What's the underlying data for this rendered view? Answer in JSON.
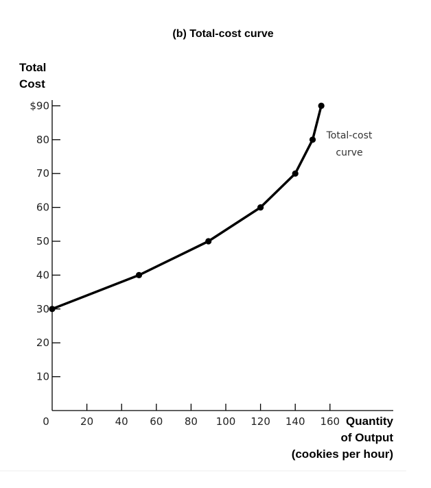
{
  "chart_data": {
    "type": "line",
    "title": "(b) Total-cost curve",
    "ylabel": [
      "Total",
      "Cost"
    ],
    "xlabel": [
      "Quantity",
      "of Output",
      "(cookies per hour)"
    ],
    "annotation": [
      "Total-cost",
      "curve"
    ],
    "x_ticks": [
      0,
      20,
      40,
      60,
      80,
      100,
      120,
      140,
      160
    ],
    "x_tick_labels": [
      "0",
      "20",
      "40",
      "60",
      "80",
      "100",
      "120",
      "140",
      "160"
    ],
    "y_ticks": [
      10,
      20,
      30,
      40,
      50,
      60,
      70,
      80,
      90
    ],
    "y_tick_labels": [
      "10",
      "20",
      "30",
      "40",
      "50",
      "60",
      "70",
      "80",
      "$90"
    ],
    "xlim": [
      0,
      200
    ],
    "ylim": [
      0,
      90
    ],
    "grid": false,
    "legend": "none",
    "series": [
      {
        "x": [
          0,
          50,
          90,
          120,
          140,
          150,
          155
        ],
        "y": [
          30,
          40,
          50,
          60,
          70,
          80,
          90
        ],
        "color": "#000000"
      }
    ]
  }
}
